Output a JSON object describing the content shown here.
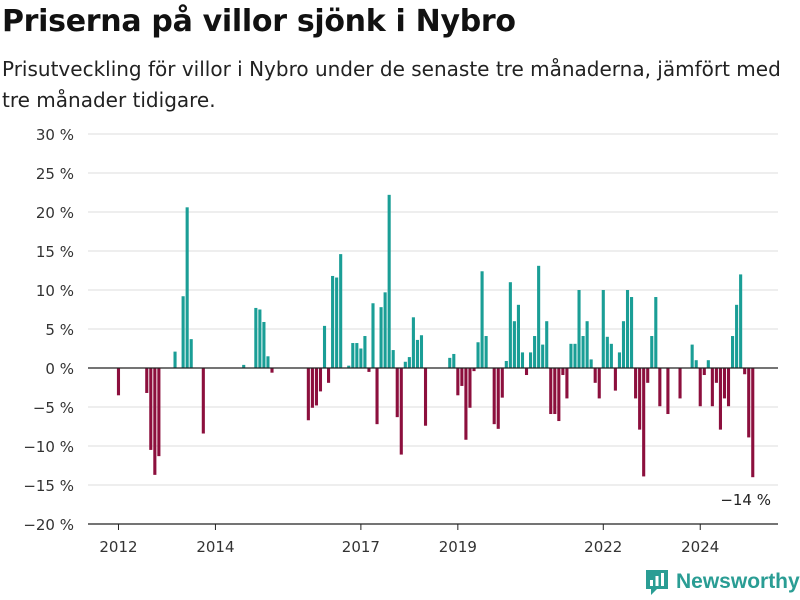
{
  "chart_data": {
    "type": "bar",
    "title": "Priserna på villor sjönk i Nybro",
    "subtitle": "Prisutveckling för villor i Nybro under de senaste tre månaderna, jämfört med tre månader tidigare.",
    "y_ticks": [
      "30 %",
      "25 %",
      "20 %",
      "15 %",
      "10 %",
      "5 %",
      "0 %",
      "−5 %",
      "−10 %",
      "−15 %",
      "−20 %"
    ],
    "ylim": [
      -20,
      30
    ],
    "x_ticks": [
      {
        "label": "2012",
        "year": 2012
      },
      {
        "label": "2014",
        "year": 2014
      },
      {
        "label": "2017",
        "year": 2017
      },
      {
        "label": "2019",
        "year": 2019
      },
      {
        "label": "2022",
        "year": 2022
      },
      {
        "label": "2024",
        "year": 2024
      }
    ],
    "x_range": [
      "2011-01",
      "2025-12"
    ],
    "positive_color": "#1a9e96",
    "negative_color": "#8c0f3d",
    "grid": true,
    "annotation": {
      "text": "−14 %",
      "date": "2024-09",
      "value": -14
    },
    "series": [
      {
        "date": "2012-01",
        "value": -3.5
      },
      {
        "date": "2012-08",
        "value": -3.2
      },
      {
        "date": "2012-09",
        "value": -10.5
      },
      {
        "date": "2012-10",
        "value": -13.7
      },
      {
        "date": "2012-11",
        "value": -11.3
      },
      {
        "date": "2013-03",
        "value": 2.1
      },
      {
        "date": "2013-05",
        "value": 9.2
      },
      {
        "date": "2013-06",
        "value": 20.6
      },
      {
        "date": "2013-07",
        "value": 3.7
      },
      {
        "date": "2013-10",
        "value": -8.4
      },
      {
        "date": "2014-08",
        "value": 0.4
      },
      {
        "date": "2014-11",
        "value": 7.7
      },
      {
        "date": "2014-12",
        "value": 7.5
      },
      {
        "date": "2015-01",
        "value": 5.9
      },
      {
        "date": "2015-02",
        "value": 1.5
      },
      {
        "date": "2015-03",
        "value": -0.6
      },
      {
        "date": "2015-12",
        "value": -6.7
      },
      {
        "date": "2016-01",
        "value": -5.1
      },
      {
        "date": "2016-02",
        "value": -4.8
      },
      {
        "date": "2016-03",
        "value": -3.0
      },
      {
        "date": "2016-04",
        "value": 5.4
      },
      {
        "date": "2016-05",
        "value": -1.9
      },
      {
        "date": "2016-06",
        "value": 11.8
      },
      {
        "date": "2016-07",
        "value": 11.6
      },
      {
        "date": "2016-08",
        "value": 14.6
      },
      {
        "date": "2016-10",
        "value": 0.3
      },
      {
        "date": "2016-11",
        "value": 3.2
      },
      {
        "date": "2016-12",
        "value": 3.2
      },
      {
        "date": "2017-01",
        "value": 2.5
      },
      {
        "date": "2017-02",
        "value": 4.1
      },
      {
        "date": "2017-03",
        "value": -0.5
      },
      {
        "date": "2017-04",
        "value": 8.3
      },
      {
        "date": "2017-05",
        "value": -7.2
      },
      {
        "date": "2017-06",
        "value": 7.8
      },
      {
        "date": "2017-07",
        "value": 9.7
      },
      {
        "date": "2017-08",
        "value": 22.2
      },
      {
        "date": "2017-09",
        "value": 2.3
      },
      {
        "date": "2017-10",
        "value": -6.3
      },
      {
        "date": "2017-11",
        "value": -11.1
      },
      {
        "date": "2017-12",
        "value": 0.8
      },
      {
        "date": "2018-01",
        "value": 1.4
      },
      {
        "date": "2018-02",
        "value": 6.5
      },
      {
        "date": "2018-03",
        "value": 3.6
      },
      {
        "date": "2018-04",
        "value": 4.2
      },
      {
        "date": "2018-05",
        "value": -7.4
      },
      {
        "date": "2018-11",
        "value": 1.3
      },
      {
        "date": "2018-12",
        "value": 1.8
      },
      {
        "date": "2019-01",
        "value": -3.5
      },
      {
        "date": "2019-02",
        "value": -2.3
      },
      {
        "date": "2019-03",
        "value": -9.2
      },
      {
        "date": "2019-04",
        "value": -5.1
      },
      {
        "date": "2019-05",
        "value": -0.4
      },
      {
        "date": "2019-06",
        "value": 3.3
      },
      {
        "date": "2019-07",
        "value": 12.4
      },
      {
        "date": "2019-08",
        "value": 4.1
      },
      {
        "date": "2019-10",
        "value": -7.2
      },
      {
        "date": "2019-11",
        "value": -7.8
      },
      {
        "date": "2019-12",
        "value": -3.8
      },
      {
        "date": "2020-01",
        "value": 0.9
      },
      {
        "date": "2020-02",
        "value": 11.0
      },
      {
        "date": "2020-03",
        "value": 6.0
      },
      {
        "date": "2020-04",
        "value": 8.1
      },
      {
        "date": "2020-05",
        "value": 2.0
      },
      {
        "date": "2020-06",
        "value": -0.9
      },
      {
        "date": "2020-07",
        "value": 2.0
      },
      {
        "date": "2020-08",
        "value": 4.1
      },
      {
        "date": "2020-09",
        "value": 13.1
      },
      {
        "date": "2020-10",
        "value": 3.0
      },
      {
        "date": "2020-11",
        "value": 6.0
      },
      {
        "date": "2020-12",
        "value": -5.9
      },
      {
        "date": "2021-01",
        "value": -5.9
      },
      {
        "date": "2021-02",
        "value": -6.8
      },
      {
        "date": "2021-03",
        "value": -0.9
      },
      {
        "date": "2021-04",
        "value": -3.9
      },
      {
        "date": "2021-05",
        "value": 3.1
      },
      {
        "date": "2021-06",
        "value": 3.1
      },
      {
        "date": "2021-07",
        "value": 10.0
      },
      {
        "date": "2021-08",
        "value": 4.1
      },
      {
        "date": "2021-09",
        "value": 6.0
      },
      {
        "date": "2021-10",
        "value": 1.1
      },
      {
        "date": "2021-11",
        "value": -1.9
      },
      {
        "date": "2021-12",
        "value": -3.9
      },
      {
        "date": "2022-01",
        "value": 10.0
      },
      {
        "date": "2022-02",
        "value": 4.0
      },
      {
        "date": "2022-03",
        "value": 3.1
      },
      {
        "date": "2022-04",
        "value": -2.9
      },
      {
        "date": "2022-05",
        "value": 2.0
      },
      {
        "date": "2022-06",
        "value": 6.0
      },
      {
        "date": "2022-07",
        "value": 10.0
      },
      {
        "date": "2022-08",
        "value": 9.1
      },
      {
        "date": "2022-09",
        "value": -3.9
      },
      {
        "date": "2022-10",
        "value": -7.9
      },
      {
        "date": "2022-11",
        "value": -13.9
      },
      {
        "date": "2022-12",
        "value": -1.9
      },
      {
        "date": "2023-01",
        "value": 4.1
      },
      {
        "date": "2023-02",
        "value": 9.1
      },
      {
        "date": "2023-03",
        "value": -4.9
      },
      {
        "date": "2023-05",
        "value": -5.9
      },
      {
        "date": "2023-08",
        "value": -3.9
      },
      {
        "date": "2023-11",
        "value": 3.0
      },
      {
        "date": "2023-12",
        "value": 1.0
      },
      {
        "date": "2024-01",
        "value": -4.9
      },
      {
        "date": "2024-02",
        "value": -0.9
      },
      {
        "date": "2024-03",
        "value": 1.0
      },
      {
        "date": "2024-04",
        "value": -4.9
      },
      {
        "date": "2024-05",
        "value": -1.9
      },
      {
        "date": "2024-06",
        "value": -7.9
      },
      {
        "date": "2024-07",
        "value": -3.9
      },
      {
        "date": "2024-08",
        "value": -4.9
      },
      {
        "date": "2024-09",
        "value": 4.1
      },
      {
        "date": "2024-10",
        "value": 8.1
      },
      {
        "date": "2024-11",
        "value": 12.0
      },
      {
        "date": "2024-12",
        "value": -0.8
      },
      {
        "date": "2025-01",
        "value": -8.9
      },
      {
        "date": "2025-02",
        "value": -14.0
      }
    ]
  },
  "brand": {
    "name": "Newsworthy",
    "logo_icon": "newsworthy-logo-icon",
    "color": "#2a9d94"
  }
}
